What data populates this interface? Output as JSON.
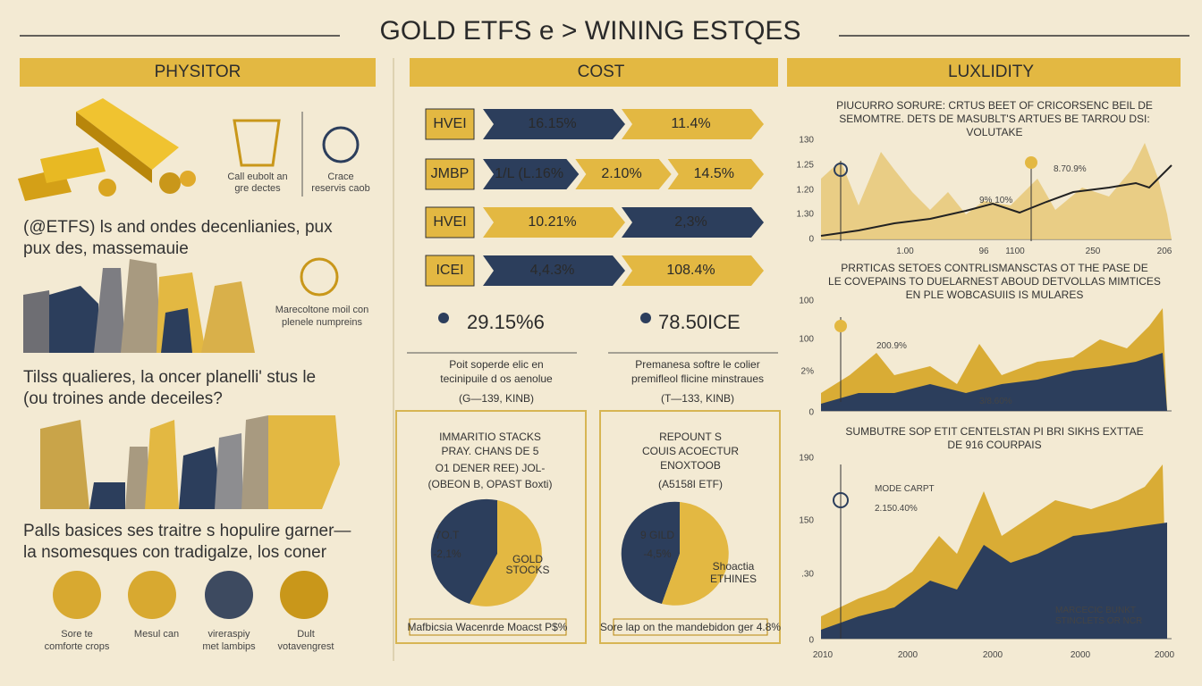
{
  "title": "GOLD ETFS e > WINING ESTQES",
  "left": {
    "header": "PHYSITOR",
    "note_a": [
      "Call eubolt an",
      "gre dectes"
    ],
    "note_b": [
      "Crace",
      "reservis caob"
    ],
    "para1": [
      "(@ETFS) ls and ondes decenlianies, pux",
      "pux des, massemauie"
    ],
    "note_c": [
      "Marecoltone moil con",
      "plenele numpreins"
    ],
    "para2": [
      "Tilss qualieres, la oncer planelli' stus le",
      "(ou troines ande deceiles?"
    ],
    "para3": [
      "Palls basices ses traitre s hopulire garner—",
      "la nsomesques con tradigalze, los coner"
    ],
    "icons": [
      [
        "Sore te",
        "comforte crops"
      ],
      [
        "Mesul can"
      ],
      [
        "vireraspiy",
        "met lambips"
      ],
      [
        "Dult",
        "votavengrest"
      ]
    ]
  },
  "cost": {
    "header": "COST",
    "rows": [
      {
        "label": "HVEI",
        "segments": [
          "16.15%",
          "11.4%"
        ]
      },
      {
        "label": "JMBP",
        "segments": [
          "1/L (L.16%",
          "2.10%",
          "14.5%"
        ]
      },
      {
        "label": "HVEI",
        "segments": [
          "10.21%",
          "2,3%"
        ]
      },
      {
        "label": "ICEI",
        "segments": [
          "4,4.3%",
          "108.4%"
        ]
      }
    ],
    "stats": [
      {
        "value": "29.15%6",
        "caption": [
          "Poit soperde elic en",
          "tecinipuile d os aenolue"
        ],
        "code": "(G—139, KINB)"
      },
      {
        "value": "78.50ICE",
        "caption": [
          "Premanesa softre le colier",
          "premifleol flicine minstraues"
        ],
        "code": "(T—133, KINB)"
      }
    ],
    "boxes": [
      {
        "lines": [
          "IMMARITIO STACKS",
          "PRAY. CHANS DE 5"
        ],
        "highlight": "O1 DENER REE) JOL-",
        "sub": "(OBEON B, OPAST Boxti)",
        "pie_top": "7O.T",
        "pie_value": "-2,1%",
        "pie_label": [
          "GOLD",
          "STOCKS"
        ],
        "footer": "Mafbicsia Wacenrde Moacst P$%"
      },
      {
        "lines": [
          "REPOUNT S",
          "COUIS ACOECTUR",
          "ENOXTOOB"
        ],
        "highlight": "(A5158I ETF)",
        "sub": "",
        "pie_top": "9 GILD",
        "pie_value": "-4,5%",
        "pie_label": [
          "Shoactia",
          "ETHINES"
        ],
        "footer": "Sore lap on the mandebidon ger 4.8%"
      }
    ]
  },
  "luxlidity": {
    "header": "LUXLIDITY",
    "chart1": {
      "title": [
        "PIUCURRO SORURE: CRTUS BEET OF CRICORSENC BEIL DE",
        "SEMOMTRE. DETS DE MASUBLT'S ARTUES BE TARROU DSI:",
        "VOLUTAKE"
      ],
      "ylabels": [
        "130",
        "1.25",
        "1.20",
        "1.30",
        "0"
      ],
      "xlabels": [
        "1.00",
        "96",
        "1100",
        "250",
        "206"
      ],
      "notes": [
        "8.70.9%",
        "9% 10%"
      ]
    },
    "chart2": {
      "title": [
        "PRRTICAS SETOES CONTRLISMANSCTAS OT THE PASE DE",
        "LE COVEPAINS TO DUELARNEST ABOUD DETVOLLAS MIMTICES",
        "EN PLE WOBCASUIIS IS MULARES"
      ],
      "ylabels": [
        "100",
        "100",
        "2%",
        "0"
      ],
      "notes": [
        "200.9%",
        "3/8.60%"
      ]
    },
    "chart3": {
      "title": [
        "SUMBUTRE SOP ETIT CENTELSTAN PI BRI SIKHS EXTTAE",
        "DE 916 COURPAIS"
      ],
      "ylabels": [
        "190",
        "150",
        ".30",
        "0"
      ],
      "xlabels": [
        "2010",
        "2000",
        "2000",
        "2000",
        "2000"
      ],
      "notes": [
        "MODE CARPT",
        "2.150.40%",
        "MARCECIC BUNKT",
        "STINCLETS OR NCR"
      ]
    }
  }
}
